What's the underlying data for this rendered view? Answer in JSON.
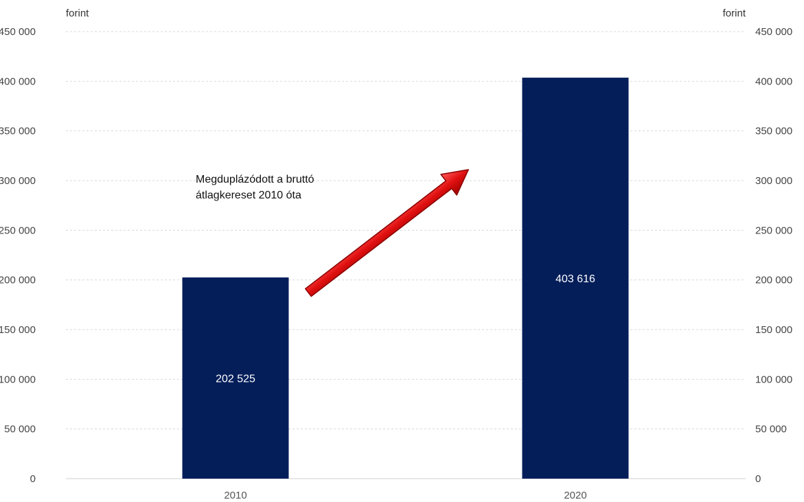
{
  "chart_data": {
    "type": "bar",
    "categories": [
      "2010",
      "2020"
    ],
    "values": [
      202525,
      403616
    ],
    "data_labels": [
      "202 525",
      "403 616"
    ],
    "title": "",
    "xlabel": "",
    "ylabel": "",
    "y_unit_left": "forint",
    "y_unit_right": "forint",
    "ylim": [
      0,
      450000
    ],
    "yticks": [
      0,
      50000,
      100000,
      150000,
      200000,
      250000,
      300000,
      350000,
      400000,
      450000
    ],
    "ytick_labels": [
      "0",
      "50 000",
      "100 000",
      "150 000",
      "200 000",
      "250 000",
      "300 000",
      "350 000",
      "400 000",
      "450 000"
    ],
    "grid": true,
    "secondary_axis": true,
    "bar_color": "#041e5a",
    "arrow_color": "#e01010",
    "annotation": {
      "line1": "Megduplázódott a bruttó",
      "line2": "átlagkereset 2010 óta"
    }
  }
}
